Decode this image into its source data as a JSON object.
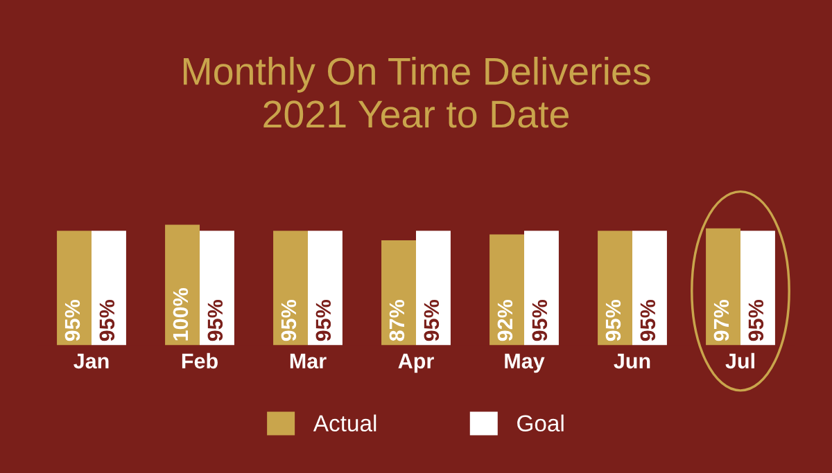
{
  "chart_data": {
    "type": "bar",
    "title": "Monthly On Time Deliveries\n2021 Year to Date",
    "categories": [
      "Jan",
      "Feb",
      "Mar",
      "Apr",
      "May",
      "Jun",
      "Jul"
    ],
    "series": [
      {
        "name": "Actual",
        "color": "#c9a54c",
        "values": [
          95,
          100,
          95,
          87,
          92,
          95,
          97
        ],
        "value_labels": [
          "95%",
          "100%",
          "95%",
          "87%",
          "92%",
          "95%",
          "97%"
        ]
      },
      {
        "name": "Goal",
        "color": "#ffffff",
        "values": [
          95,
          95,
          95,
          95,
          95,
          95,
          95
        ],
        "value_labels": [
          "95%",
          "95%",
          "95%",
          "95%",
          "95%",
          "95%",
          "95%"
        ]
      }
    ],
    "legend": "bottom",
    "tick_labels": "x"
  }
}
